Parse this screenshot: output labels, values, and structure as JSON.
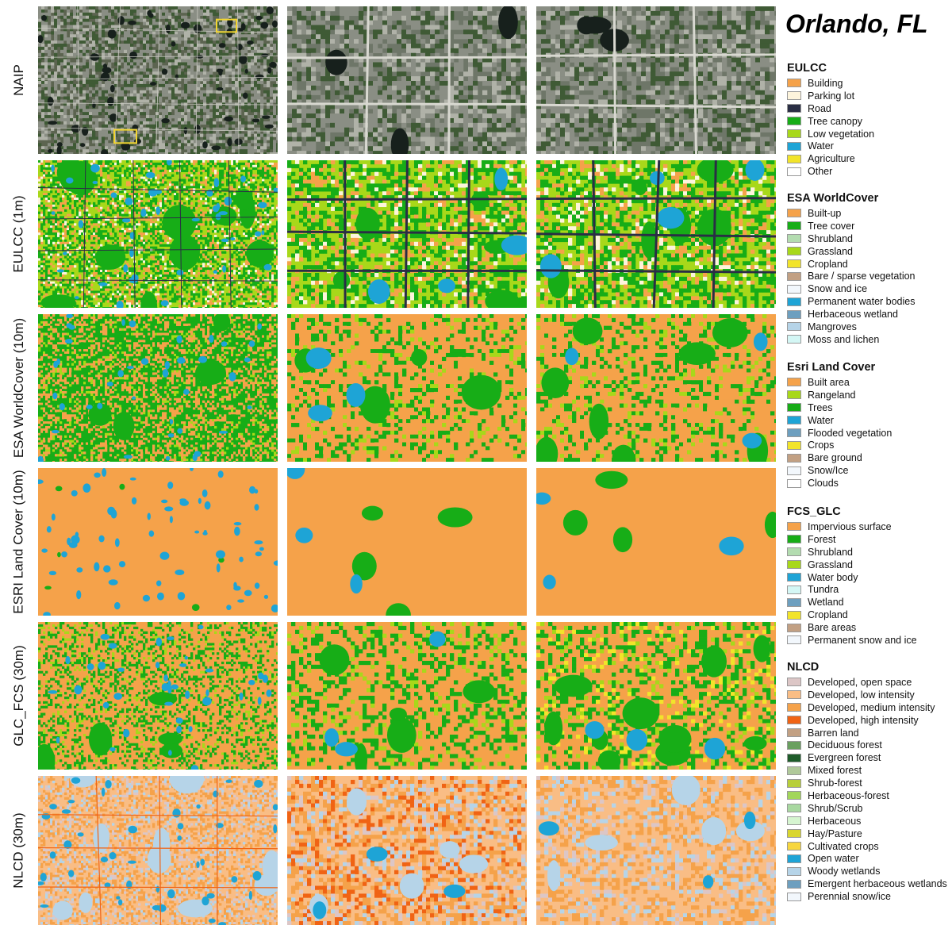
{
  "title": "Orlando, FL",
  "rows": [
    {
      "label": "NAIP",
      "type": "imagery"
    },
    {
      "label": "EULCC (1m)",
      "type": "eulcc"
    },
    {
      "label": "ESA WorldCover (10m)",
      "type": "esa"
    },
    {
      "label": "ESRI Land Cover (10m)",
      "type": "esri"
    },
    {
      "label": "GLC_FCS (30m)",
      "type": "glc"
    },
    {
      "label": "NLCD (30m)",
      "type": "nlcd"
    }
  ],
  "legends": [
    {
      "title": "EULCC",
      "items": [
        {
          "label": "Building",
          "color": "#f5a24a"
        },
        {
          "label": "Parking lot",
          "color": "#fdf4dc"
        },
        {
          "label": "Road",
          "color": "#2a2e45"
        },
        {
          "label": "Tree canopy",
          "color": "#17ad17"
        },
        {
          "label": "Low vegetation",
          "color": "#a8d81a"
        },
        {
          "label": "Water",
          "color": "#1ea4d6"
        },
        {
          "label": "Agriculture",
          "color": "#f2e42a"
        },
        {
          "label": "Other",
          "color": "#ffffff"
        }
      ]
    },
    {
      "title": "ESA WorldCover",
      "items": [
        {
          "label": "Built-up",
          "color": "#f5a24a"
        },
        {
          "label": "Tree cover",
          "color": "#17ad17"
        },
        {
          "label": "Shrubland",
          "color": "#b3dcb0"
        },
        {
          "label": "Grassland",
          "color": "#a8d81a"
        },
        {
          "label": "Cropland",
          "color": "#f2e42a"
        },
        {
          "label": "Bare / sparse vegetation",
          "color": "#c2a083"
        },
        {
          "label": "Snow and ice",
          "color": "#f2f7fc"
        },
        {
          "label": "Permanent water bodies",
          "color": "#1ea4d6"
        },
        {
          "label": "Herbaceous wetland",
          "color": "#6d9fbf"
        },
        {
          "label": "Mangroves",
          "color": "#b6d4e8"
        },
        {
          "label": "Moss and lichen",
          "color": "#d4f7f5"
        }
      ]
    },
    {
      "title": "Esri Land Cover",
      "items": [
        {
          "label": "Built area",
          "color": "#f5a24a"
        },
        {
          "label": "Rangeland",
          "color": "#a8d81a"
        },
        {
          "label": "Trees",
          "color": "#17ad17"
        },
        {
          "label": "Water",
          "color": "#1ea4d6"
        },
        {
          "label": "Flooded vegetation",
          "color": "#6d9fbf"
        },
        {
          "label": "Crops",
          "color": "#f2e42a"
        },
        {
          "label": "Bare ground",
          "color": "#c2a083"
        },
        {
          "label": "Snow/Ice",
          "color": "#f2f7fc"
        },
        {
          "label": "Clouds",
          "color": "#ffffff"
        }
      ]
    },
    {
      "title": "FCS_GLC",
      "items": [
        {
          "label": "Impervious surface",
          "color": "#f5a24a"
        },
        {
          "label": "Forest",
          "color": "#17ad17"
        },
        {
          "label": "Shrubland",
          "color": "#b3dcb0"
        },
        {
          "label": "Grassland",
          "color": "#a8d81a"
        },
        {
          "label": "Water body",
          "color": "#1ea4d6"
        },
        {
          "label": "Tundra",
          "color": "#d4f7f5"
        },
        {
          "label": "Wetland",
          "color": "#6d9fbf"
        },
        {
          "label": "Cropland",
          "color": "#f2e42a"
        },
        {
          "label": "Bare areas",
          "color": "#c2a083"
        },
        {
          "label": "Permanent snow and ice",
          "color": "#f2f7fc"
        }
      ]
    },
    {
      "title": "NLCD",
      "items": [
        {
          "label": "Developed, open space",
          "color": "#dcc6c6"
        },
        {
          "label": "Developed, low intensity",
          "color": "#f9bd85"
        },
        {
          "label": "Developed, medium intensity",
          "color": "#f5a24a"
        },
        {
          "label": "Developed, high intensity",
          "color": "#f06314"
        },
        {
          "label": "Barren land",
          "color": "#c2a083"
        },
        {
          "label": "Deciduous forest",
          "color": "#6aa060"
        },
        {
          "label": "Evergreen forest",
          "color": "#1e5c2a"
        },
        {
          "label": "Mixed forest",
          "color": "#b0c99a"
        },
        {
          "label": "Shrub-forest",
          "color": "#b8cf3a"
        },
        {
          "label": "Herbaceous-forest",
          "color": "#a2d65a"
        },
        {
          "label": "Shrub/Scrub",
          "color": "#a8d8a0"
        },
        {
          "label": "Herbaceous",
          "color": "#d6f5d0"
        },
        {
          "label": "Hay/Pasture",
          "color": "#d9d62e"
        },
        {
          "label": "Cultivated crops",
          "color": "#f7d63e"
        },
        {
          "label": "Open water",
          "color": "#1ea4d6"
        },
        {
          "label": "Woody wetlands",
          "color": "#b6d4e8"
        },
        {
          "label": "Emergent herbaceous wetlands",
          "color": "#6d9fbf"
        },
        {
          "label": "Perennial snow/ice",
          "color": "#f2f7fc"
        }
      ]
    }
  ]
}
